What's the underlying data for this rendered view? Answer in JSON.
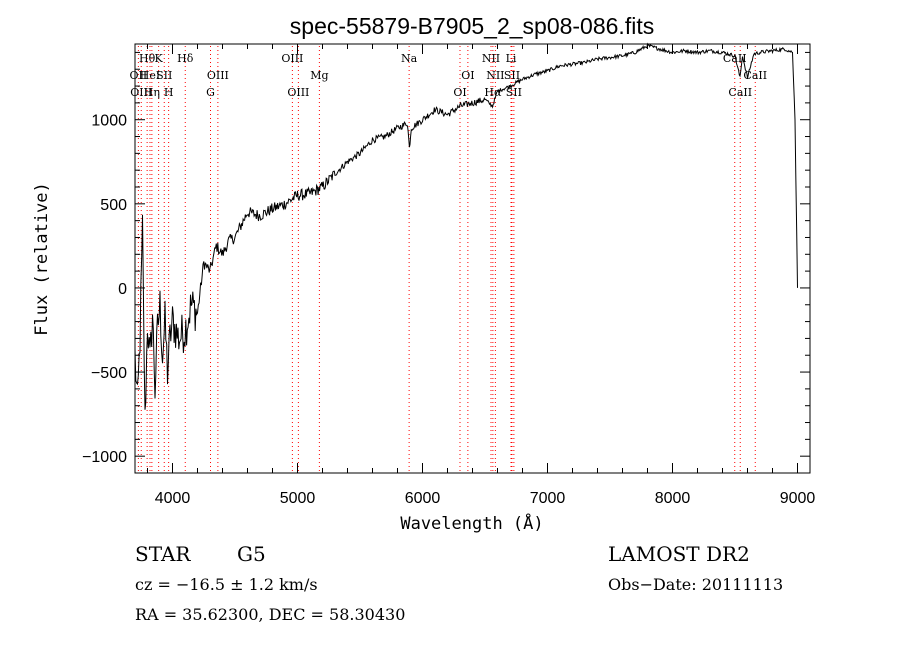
{
  "chart_data": {
    "type": "line",
    "title": "spec-55879-B7905_2_sp08-086.fits",
    "xlabel": "Wavelength (Å)",
    "ylabel": "Flux (relative)",
    "xlim": [
      3700,
      9100
    ],
    "ylim": [
      -1100,
      1450
    ],
    "x_ticks": [
      4000,
      5000,
      6000,
      7000,
      8000,
      9000
    ],
    "y_ticks": [
      -1000,
      -500,
      0,
      500,
      1000
    ],
    "grid": false,
    "line_color": "#000000",
    "marker_color": "#ff0000",
    "series": [
      {
        "name": "",
        "x": [
          3700,
          3720,
          3740,
          3760,
          3780,
          3800,
          3820,
          3840,
          3860,
          3880,
          3900,
          3920,
          3940,
          3960,
          3980,
          4000,
          4050,
          4100,
          4150,
          4200,
          4250,
          4300,
          4350,
          4400,
          4450,
          4500,
          4600,
          4700,
          4800,
          4900,
          5000,
          5100,
          5200,
          5300,
          5400,
          5500,
          5600,
          5700,
          5800,
          5880,
          5895,
          5910,
          6000,
          6100,
          6200,
          6300,
          6400,
          6500,
          6560,
          6600,
          6700,
          6800,
          6900,
          7000,
          7100,
          7200,
          7300,
          7400,
          7500,
          7600,
          7700,
          7800,
          7900,
          8000,
          8100,
          8200,
          8300,
          8400,
          8500,
          8540,
          8560,
          8600,
          8650,
          8700,
          8800,
          8900,
          8960,
          8980,
          9000
        ],
        "y": [
          -400,
          -700,
          -300,
          350,
          -800,
          -200,
          -450,
          -150,
          -600,
          -250,
          -100,
          -400,
          -200,
          -500,
          -300,
          -200,
          -300,
          -250,
          -100,
          -150,
          150,
          100,
          250,
          200,
          280,
          300,
          450,
          430,
          470,
          500,
          550,
          560,
          600,
          680,
          750,
          800,
          880,
          900,
          950,
          980,
          830,
          950,
          1000,
          1060,
          1030,
          1080,
          1100,
          1120,
          1080,
          1170,
          1200,
          1240,
          1270,
          1290,
          1320,
          1330,
          1340,
          1360,
          1370,
          1380,
          1400,
          1440,
          1420,
          1400,
          1410,
          1400,
          1410,
          1400,
          1380,
          1250,
          1380,
          1250,
          1390,
          1400,
          1410,
          1420,
          1400,
          1000,
          0
        ]
      }
    ],
    "lines": [
      {
        "x": 3727,
        "label": "OII",
        "row": 1
      },
      {
        "x": 3750,
        "label": "OIII",
        "row": 2
      },
      {
        "x": 3797,
        "label": "Hθ",
        "row": 0
      },
      {
        "x": 3820,
        "label": "HeI",
        "row": 1
      },
      {
        "x": 3835,
        "label": "Hη",
        "row": 2
      },
      {
        "x": 3889,
        "label": "K",
        "row": 0
      },
      {
        "x": 3934,
        "label": "SII",
        "row": 1
      },
      {
        "x": 3969,
        "label": "H",
        "row": 2
      },
      {
        "x": 4102,
        "label": "Hδ",
        "row": 0
      },
      {
        "x": 4304,
        "label": "G",
        "row": 2
      },
      {
        "x": 4363,
        "label": "OIII",
        "row": 1
      },
      {
        "x": 4959,
        "label": "OIII",
        "row": 0
      },
      {
        "x": 5007,
        "label": "OIII",
        "row": 2
      },
      {
        "x": 5175,
        "label": "Mg",
        "row": 1
      },
      {
        "x": 5893,
        "label": "Na",
        "row": 0
      },
      {
        "x": 6300,
        "label": "OI",
        "row": 2
      },
      {
        "x": 6363,
        "label": "OI",
        "row": 1
      },
      {
        "x": 6548,
        "label": "NII",
        "row": 0
      },
      {
        "x": 6563,
        "label": "Hα",
        "row": 2
      },
      {
        "x": 6583,
        "label": "NII",
        "row": 1
      },
      {
        "x": 6708,
        "label": "Li",
        "row": 0
      },
      {
        "x": 6716,
        "label": "SII",
        "row": 1
      },
      {
        "x": 6731,
        "label": "SII",
        "row": 2
      },
      {
        "x": 8498,
        "label": "CaII",
        "row": 0
      },
      {
        "x": 8542,
        "label": "CaII",
        "row": 2
      },
      {
        "x": 8662,
        "label": "CaII",
        "row": 1
      }
    ]
  },
  "info": {
    "object_class": "STAR",
    "subclass": "G5",
    "survey": "LAMOST DR2",
    "velocity": "cz = −16.5 ± 1.2 km/s",
    "obs_date": "Obs−Date: 20111113",
    "coordinates": "RA =  35.62300, DEC =  58.30430"
  }
}
